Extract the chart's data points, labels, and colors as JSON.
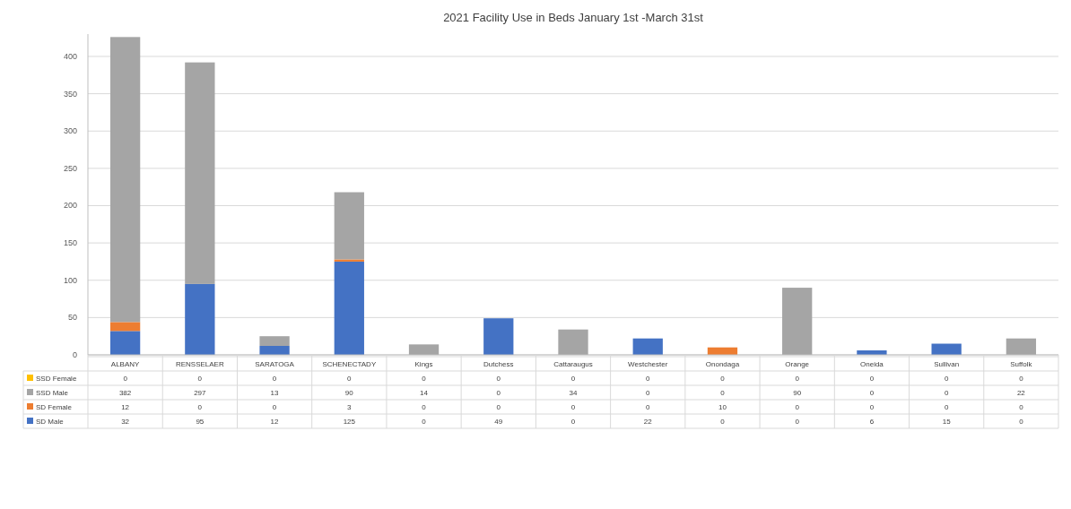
{
  "chart_data": {
    "type": "bar",
    "title": "2021 Facility Use in Beds January 1st -March 31st",
    "categories": [
      "ALBANY",
      "RENSSELAER",
      "SARATOGA",
      "SCHENECTADY",
      "Kings",
      "Dutchess",
      "Cattaraugus",
      "Westchester",
      "Onondaga",
      "Orange",
      "Oneida",
      "Sullivan",
      "Suffolk"
    ],
    "stacked": true,
    "series": [
      {
        "name": "SD Male",
        "color": "#4472c4",
        "values": [
          32,
          95,
          12,
          125,
          0,
          49,
          0,
          22,
          0,
          0,
          6,
          15,
          0
        ]
      },
      {
        "name": "SD Female",
        "color": "#ed7d31",
        "values": [
          12,
          0,
          0,
          3,
          0,
          0,
          0,
          0,
          10,
          0,
          0,
          0,
          0
        ]
      },
      {
        "name": "SSD Male",
        "color": "#a5a5a5",
        "values": [
          382,
          297,
          13,
          90,
          14,
          0,
          34,
          0,
          0,
          90,
          0,
          0,
          22
        ]
      },
      {
        "name": "SSD Female",
        "color": "#ffc000",
        "values": [
          0,
          0,
          0,
          0,
          0,
          0,
          0,
          0,
          0,
          0,
          0,
          0,
          0
        ]
      }
    ],
    "ylim": [
      0,
      430
    ],
    "yticks": [
      0,
      50,
      100,
      150,
      200,
      250,
      300,
      350,
      400
    ],
    "grid": "y",
    "data_labels": true,
    "legend": "bottom"
  }
}
